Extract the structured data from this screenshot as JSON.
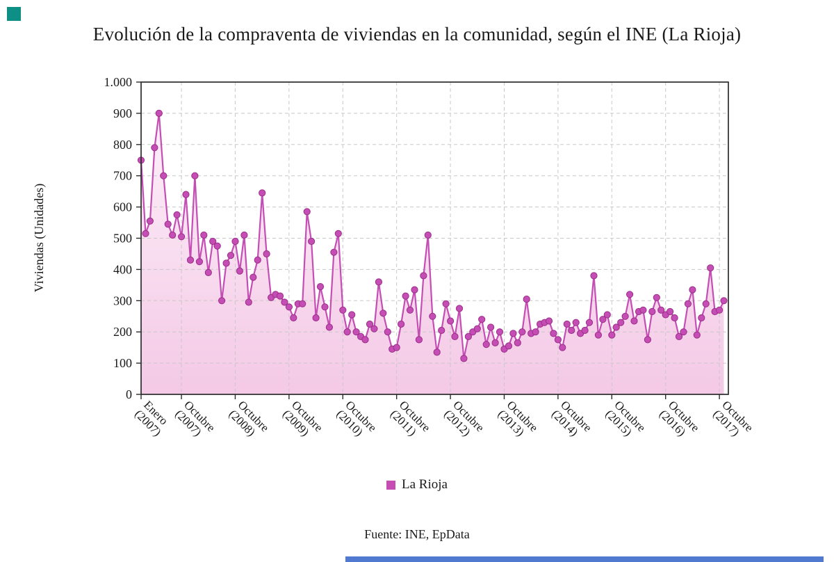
{
  "title": "Evolución de la compraventa de viviendas en la comunidad, según el INE (La Rioja)",
  "y_axis": {
    "label": "Viviendas (Unidades)",
    "tick_labels": [
      "0",
      "100",
      "200",
      "300",
      "400",
      "500",
      "600",
      "700",
      "800",
      "900",
      "1.000"
    ]
  },
  "x_axis": {
    "ticks": [
      {
        "line1": "Enero",
        "line2": "(2007)",
        "month_index": 0
      },
      {
        "line1": "Octubre",
        "line2": "(2007)",
        "month_index": 9
      },
      {
        "line1": "Octubre",
        "line2": "(2008)",
        "month_index": 21
      },
      {
        "line1": "Octubre",
        "line2": "(2009)",
        "month_index": 33
      },
      {
        "line1": "Octubre",
        "line2": "(2010)",
        "month_index": 45
      },
      {
        "line1": "Octubre",
        "line2": "(2011)",
        "month_index": 57
      },
      {
        "line1": "Octubre",
        "line2": "(2012)",
        "month_index": 69
      },
      {
        "line1": "Octubre",
        "line2": "(2013)",
        "month_index": 81
      },
      {
        "line1": "Octubre",
        "line2": "(2014)",
        "month_index": 93
      },
      {
        "line1": "Octubre",
        "line2": "(2015)",
        "month_index": 105
      },
      {
        "line1": "Octubre",
        "line2": "(2016)",
        "month_index": 117
      },
      {
        "line1": "Octubre",
        "line2": "(2017)",
        "month_index": 129
      }
    ]
  },
  "legend": {
    "label": "La Rioja"
  },
  "source": "Fuente: INE, EpData",
  "colors": {
    "line": "#c44eb4",
    "marker": "#c44eb4",
    "marker_edge": "#9c2d8a",
    "area_top": "#fdf0f9",
    "area_bottom": "#f4c9e6",
    "grid": "#c8c8c8",
    "axis": "#2b2b2b",
    "corner_square": "#0e8f86",
    "bottom_bar": "#4f7ad0"
  },
  "chart_data": {
    "type": "line",
    "x_start": "Enero 2007",
    "x_end": "Noviembre 2017",
    "x_frequency": "monthly",
    "ylim": [
      0,
      1000
    ],
    "grid": true,
    "legend_position": "bottom",
    "series": [
      {
        "name": "La Rioja",
        "values": [
          750,
          515,
          555,
          790,
          900,
          700,
          545,
          510,
          575,
          505,
          640,
          430,
          700,
          425,
          510,
          390,
          490,
          475,
          300,
          420,
          445,
          490,
          395,
          510,
          295,
          375,
          430,
          645,
          450,
          310,
          320,
          315,
          295,
          280,
          245,
          290,
          290,
          585,
          490,
          245,
          345,
          280,
          215,
          455,
          515,
          270,
          200,
          255,
          200,
          185,
          175,
          225,
          210,
          360,
          260,
          200,
          145,
          150,
          225,
          315,
          270,
          335,
          175,
          380,
          510,
          250,
          135,
          205,
          290,
          235,
          185,
          275,
          115,
          185,
          200,
          210,
          240,
          160,
          215,
          165,
          200,
          145,
          155,
          195,
          165,
          200,
          305,
          195,
          200,
          225,
          230,
          235,
          195,
          175,
          150,
          225,
          205,
          230,
          195,
          205,
          230,
          380,
          190,
          240,
          255,
          190,
          215,
          230,
          250,
          320,
          235,
          265,
          270,
          175,
          265,
          310,
          270,
          255,
          265,
          245,
          185,
          200,
          290,
          335,
          190,
          245,
          290,
          405,
          265,
          270,
          300
        ]
      }
    ]
  }
}
